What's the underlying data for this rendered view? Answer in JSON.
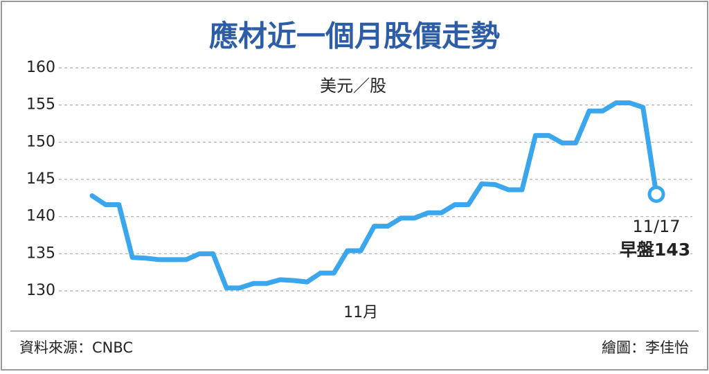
{
  "chart_data": {
    "type": "line",
    "title": "應材近一個月股價走勢",
    "y_label": "美元／股",
    "source": "資料來源：CNBC",
    "credit": "繪圖：李佳怡",
    "annotation": {
      "date": "11/17",
      "text": "早盤143"
    },
    "categories": [
      null,
      null,
      null,
      null,
      null,
      null,
      null,
      null,
      null,
      null,
      null,
      null,
      null,
      null,
      null,
      null,
      null,
      null,
      null,
      null,
      "11月",
      null,
      null,
      null,
      null,
      null,
      null,
      null,
      null,
      null,
      null,
      null,
      null,
      null,
      null,
      null,
      null,
      null,
      null,
      null,
      null,
      null,
      null
    ],
    "series": [
      {
        "name": "應材",
        "color": "#3aa6ee",
        "values": [
          142.8,
          141.6,
          141.6,
          134.5,
          134.4,
          134.2,
          134.2,
          134.2,
          135.0,
          135.0,
          130.4,
          130.4,
          131.0,
          131.0,
          131.5,
          131.4,
          131.2,
          132.4,
          132.4,
          135.4,
          135.4,
          138.7,
          138.7,
          139.8,
          139.8,
          140.5,
          140.5,
          141.6,
          141.6,
          144.4,
          144.3,
          143.6,
          143.6,
          150.9,
          150.9,
          149.9,
          149.9,
          154.2,
          154.2,
          155.3,
          155.3,
          154.7,
          143
        ]
      }
    ],
    "ylim": [
      130,
      160
    ],
    "yticks": [
      130,
      135,
      140,
      145,
      150,
      155,
      160
    ],
    "grid": true
  }
}
